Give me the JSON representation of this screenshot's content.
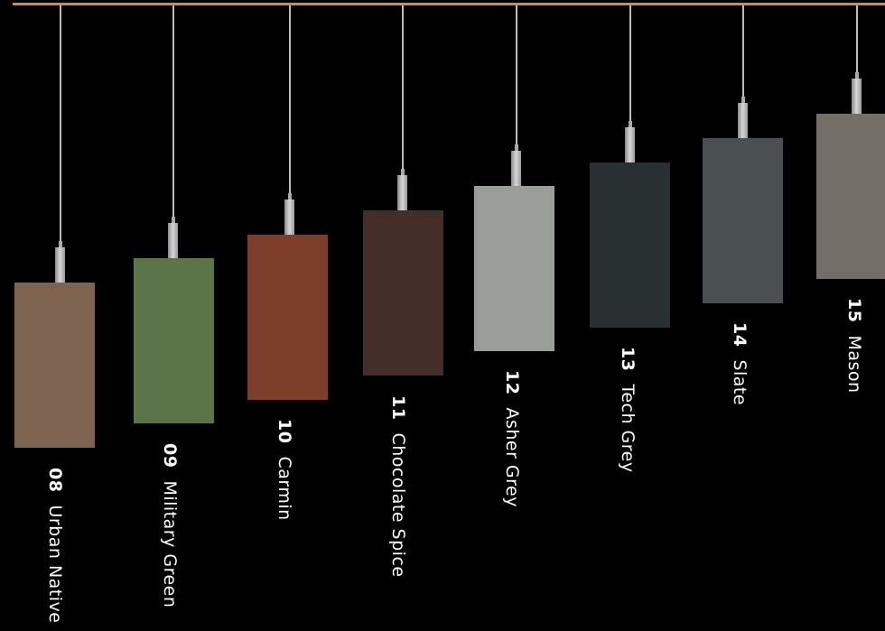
{
  "swatches": [
    {
      "number": "08",
      "name": "Urban Native",
      "color": "#7e6350"
    },
    {
      "number": "09",
      "name": "Military Green",
      "color": "#5b7448"
    },
    {
      "number": "10",
      "name": "Carmin",
      "color": "#7c3d29"
    },
    {
      "number": "11",
      "name": "Chocolate Spice",
      "color": "#432e2a"
    },
    {
      "number": "12",
      "name": "Asher Grey",
      "color": "#9a9e98"
    },
    {
      "number": "13",
      "name": "Tech Grey",
      "color": "#283032"
    },
    {
      "number": "14",
      "name": "Slate",
      "color": "#4a4f52"
    },
    {
      "number": "15",
      "name": "Mason",
      "color": "#736f66"
    }
  ]
}
